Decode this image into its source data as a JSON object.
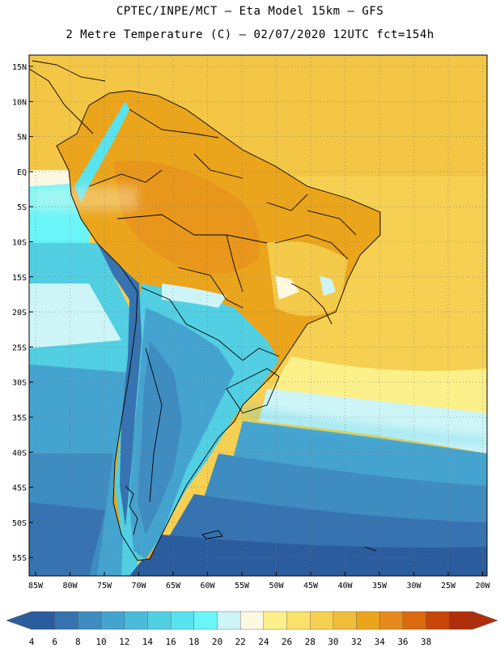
{
  "header": {
    "line1": "CPTEC/INPE/MCT –  Eta Model 15km – GFS",
    "line2": "2 Metre Temperature (C) – 02/07/2020 12UTC fct=154h"
  },
  "map": {
    "lat_labels": [
      "15N",
      "10N",
      "5N",
      "EQ",
      "5S",
      "10S",
      "15S",
      "20S",
      "25S",
      "30S",
      "35S",
      "40S",
      "45S",
      "50S",
      "55S"
    ],
    "lon_labels": [
      "85W",
      "80W",
      "75W",
      "70W",
      "65W",
      "60W",
      "55W",
      "50W",
      "45W",
      "40W",
      "35W",
      "30W",
      "25W",
      "20W"
    ]
  },
  "colorbar": {
    "values": [
      "4",
      "6",
      "8",
      "10",
      "12",
      "14",
      "16",
      "18",
      "20",
      "22",
      "24",
      "26",
      "28",
      "30",
      "32",
      "34",
      "36",
      "38"
    ],
    "colors": [
      "#2b5c9e",
      "#3673b0",
      "#3f8cc1",
      "#45a3cf",
      "#4cbbd9",
      "#52cfe2",
      "#59e3ee",
      "#6af5f8",
      "#cdf5f8",
      "#fdf8e2",
      "#fcf08a",
      "#fbe169",
      "#f6d052",
      "#f0bd3a",
      "#eaa51c",
      "#e58a1c",
      "#dc6a10",
      "#c8460a",
      "#b02e0a"
    ],
    "left_arrow_color": "#2b5c9e",
    "right_arrow_color": "#b02e0a"
  }
}
